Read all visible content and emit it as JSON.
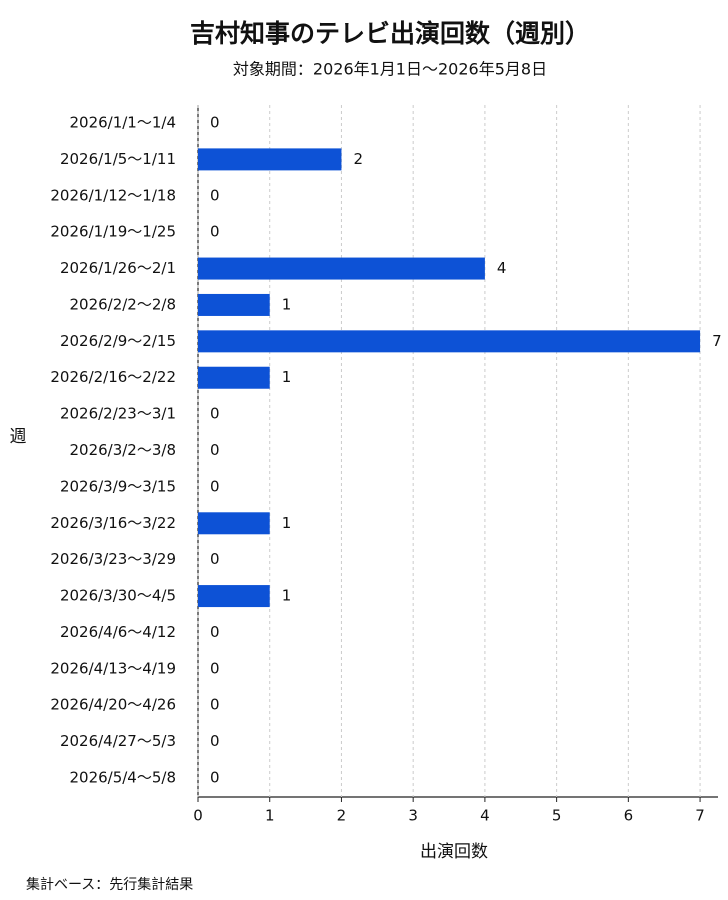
{
  "chart_data": {
    "type": "bar",
    "orientation": "horizontal",
    "title": "吉村知事のテレビ出演回数（週別）",
    "subtitle": "対象期間：2026年1月1日〜2026年5月8日",
    "x_label": "出演回数",
    "y_label": "週",
    "footnote": "集計ベース：先行集計結果",
    "categories": [
      "2026/1/1〜1/4",
      "2026/1/5〜1/11",
      "2026/1/12〜1/18",
      "2026/1/19〜1/25",
      "2026/1/26〜2/1",
      "2026/2/2〜2/8",
      "2026/2/9〜2/15",
      "2026/2/16〜2/22",
      "2026/2/23〜3/1",
      "2026/3/2〜3/8",
      "2026/3/9〜3/15",
      "2026/3/16〜3/22",
      "2026/3/23〜3/29",
      "2026/3/30〜4/5",
      "2026/4/6〜4/12",
      "2026/4/13〜4/19",
      "2026/4/20〜4/26",
      "2026/4/27〜5/3",
      "2026/5/4〜5/8"
    ],
    "values": [
      0,
      2,
      0,
      0,
      4,
      1,
      7,
      1,
      0,
      0,
      0,
      1,
      0,
      1,
      0,
      0,
      0,
      0,
      0
    ],
    "color": "#0d52d6",
    "xlim": [
      0,
      7.25
    ],
    "xticks": [
      0,
      1,
      2,
      3,
      4,
      5,
      6,
      7
    ],
    "grid": true
  }
}
